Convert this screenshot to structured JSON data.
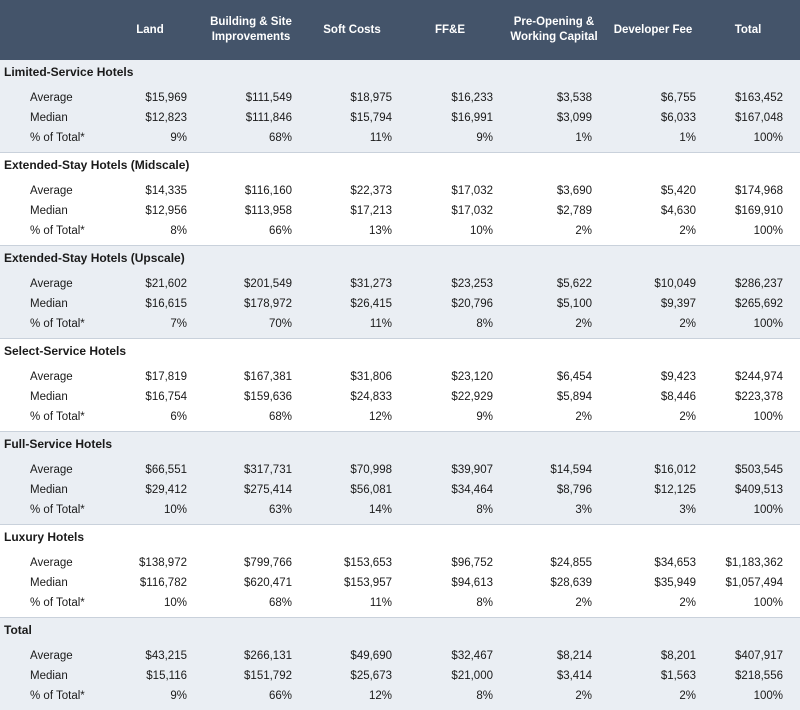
{
  "columns": [
    "Land",
    "Building & Site Improvements",
    "Soft Costs",
    "FF&E",
    "Pre-Opening & Working Capital",
    "Developer Fee",
    "Total"
  ],
  "header_lines": [
    [
      "Land"
    ],
    [
      "Building & Site",
      "Improvements"
    ],
    [
      "Soft Costs"
    ],
    [
      "FF&E"
    ],
    [
      "Pre-Opening &",
      "Working Capital"
    ],
    [
      "Developer Fee"
    ],
    [
      "Total"
    ]
  ],
  "groups": [
    {
      "title": "Limited-Service Hotels",
      "rows": [
        {
          "label": "Average",
          "values": [
            "$15,969",
            "$111,549",
            "$18,975",
            "$16,233",
            "$3,538",
            "$6,755",
            "$163,452"
          ]
        },
        {
          "label": "Median",
          "values": [
            "$12,823",
            "$111,846",
            "$15,794",
            "$16,991",
            "$3,099",
            "$6,033",
            "$167,048"
          ]
        },
        {
          "label": "% of Total*",
          "values": [
            "9%",
            "68%",
            "11%",
            "9%",
            "1%",
            "1%",
            "100%"
          ]
        }
      ]
    },
    {
      "title": "Extended-Stay Hotels (Midscale)",
      "rows": [
        {
          "label": "Average",
          "values": [
            "$14,335",
            "$116,160",
            "$22,373",
            "$17,032",
            "$3,690",
            "$5,420",
            "$174,968"
          ]
        },
        {
          "label": "Median",
          "values": [
            "$12,956",
            "$113,958",
            "$17,213",
            "$17,032",
            "$2,789",
            "$4,630",
            "$169,910"
          ]
        },
        {
          "label": "% of Total*",
          "values": [
            "8%",
            "66%",
            "13%",
            "10%",
            "2%",
            "2%",
            "100%"
          ]
        }
      ]
    },
    {
      "title": "Extended-Stay Hotels (Upscale)",
      "rows": [
        {
          "label": "Average",
          "values": [
            "$21,602",
            "$201,549",
            "$31,273",
            "$23,253",
            "$5,622",
            "$10,049",
            "$286,237"
          ]
        },
        {
          "label": "Median",
          "values": [
            "$16,615",
            "$178,972",
            "$26,415",
            "$20,796",
            "$5,100",
            "$9,397",
            "$265,692"
          ]
        },
        {
          "label": "% of Total*",
          "values": [
            "7%",
            "70%",
            "11%",
            "8%",
            "2%",
            "2%",
            "100%"
          ]
        }
      ]
    },
    {
      "title": "Select-Service Hotels",
      "rows": [
        {
          "label": "Average",
          "values": [
            "$17,819",
            "$167,381",
            "$31,806",
            "$23,120",
            "$6,454",
            "$9,423",
            "$244,974"
          ]
        },
        {
          "label": "Median",
          "values": [
            "$16,754",
            "$159,636",
            "$24,833",
            "$22,929",
            "$5,894",
            "$8,446",
            "$223,378"
          ]
        },
        {
          "label": "% of Total*",
          "values": [
            "6%",
            "68%",
            "12%",
            "9%",
            "2%",
            "2%",
            "100%"
          ]
        }
      ]
    },
    {
      "title": "Full-Service Hotels",
      "rows": [
        {
          "label": "Average",
          "values": [
            "$66,551",
            "$317,731",
            "$70,998",
            "$39,907",
            "$14,594",
            "$16,012",
            "$503,545"
          ]
        },
        {
          "label": "Median",
          "values": [
            "$29,412",
            "$275,414",
            "$56,081",
            "$34,464",
            "$8,796",
            "$12,125",
            "$409,513"
          ]
        },
        {
          "label": "% of Total*",
          "values": [
            "10%",
            "63%",
            "14%",
            "8%",
            "3%",
            "3%",
            "100%"
          ]
        }
      ]
    },
    {
      "title": "Luxury Hotels",
      "rows": [
        {
          "label": "Average",
          "values": [
            "$138,972",
            "$799,766",
            "$153,653",
            "$96,752",
            "$24,855",
            "$34,653",
            "$1,183,362"
          ]
        },
        {
          "label": "Median",
          "values": [
            "$116,782",
            "$620,471",
            "$153,957",
            "$94,613",
            "$28,639",
            "$35,949",
            "$1,057,494"
          ]
        },
        {
          "label": "% of Total*",
          "values": [
            "10%",
            "68%",
            "11%",
            "8%",
            "2%",
            "2%",
            "100%"
          ]
        }
      ]
    },
    {
      "title": "Total",
      "rows": [
        {
          "label": "Average",
          "values": [
            "$43,215",
            "$266,131",
            "$49,690",
            "$32,467",
            "$8,214",
            "$8,201",
            "$407,917"
          ]
        },
        {
          "label": "Median",
          "values": [
            "$15,116",
            "$151,792",
            "$25,673",
            "$21,000",
            "$3,414",
            "$1,563",
            "$218,556"
          ]
        },
        {
          "label": "% of Total*",
          "values": [
            "9%",
            "66%",
            "12%",
            "8%",
            "2%",
            "2%",
            "100%"
          ]
        }
      ]
    }
  ],
  "colors": {
    "header_bg": "#44546a",
    "header_text": "#ffffff",
    "shaded_row": "#eaeef3",
    "separator": "#c9d1db"
  }
}
